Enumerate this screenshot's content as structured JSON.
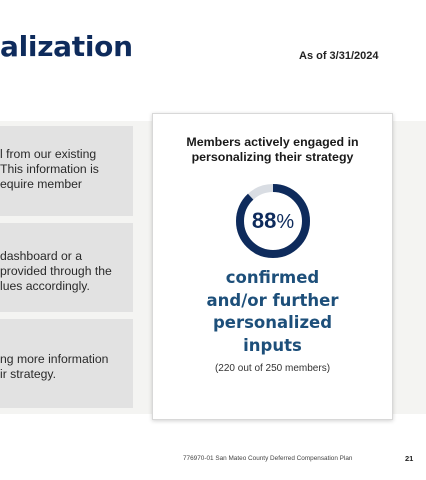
{
  "header": {
    "title": "alization",
    "as_of": "As of 3/31/2024"
  },
  "boxes": [
    {
      "lines": [
        "l from our existing",
        "This information is",
        "equire member"
      ]
    },
    {
      "lines": [
        "dashboard or a",
        "provided through the",
        "lues accordingly."
      ]
    },
    {
      "lines": [
        "ng more information",
        "ir strategy."
      ]
    }
  ],
  "card": {
    "title_lines": [
      "Members actively engaged in",
      "personalizing their strategy"
    ],
    "percent_value": "88",
    "percent_symbol": "%",
    "percent_fraction": 0.88,
    "ring_color": "#0e2b5c",
    "track_color": "#d9dde3",
    "big_lines": [
      "confirmed",
      "and/or further",
      "personalized",
      "inputs"
    ],
    "note": "(220 out of 250 members)"
  },
  "footer": {
    "text": "776970-01 San Mateo County Deferred Compensation Plan",
    "page": "21"
  }
}
